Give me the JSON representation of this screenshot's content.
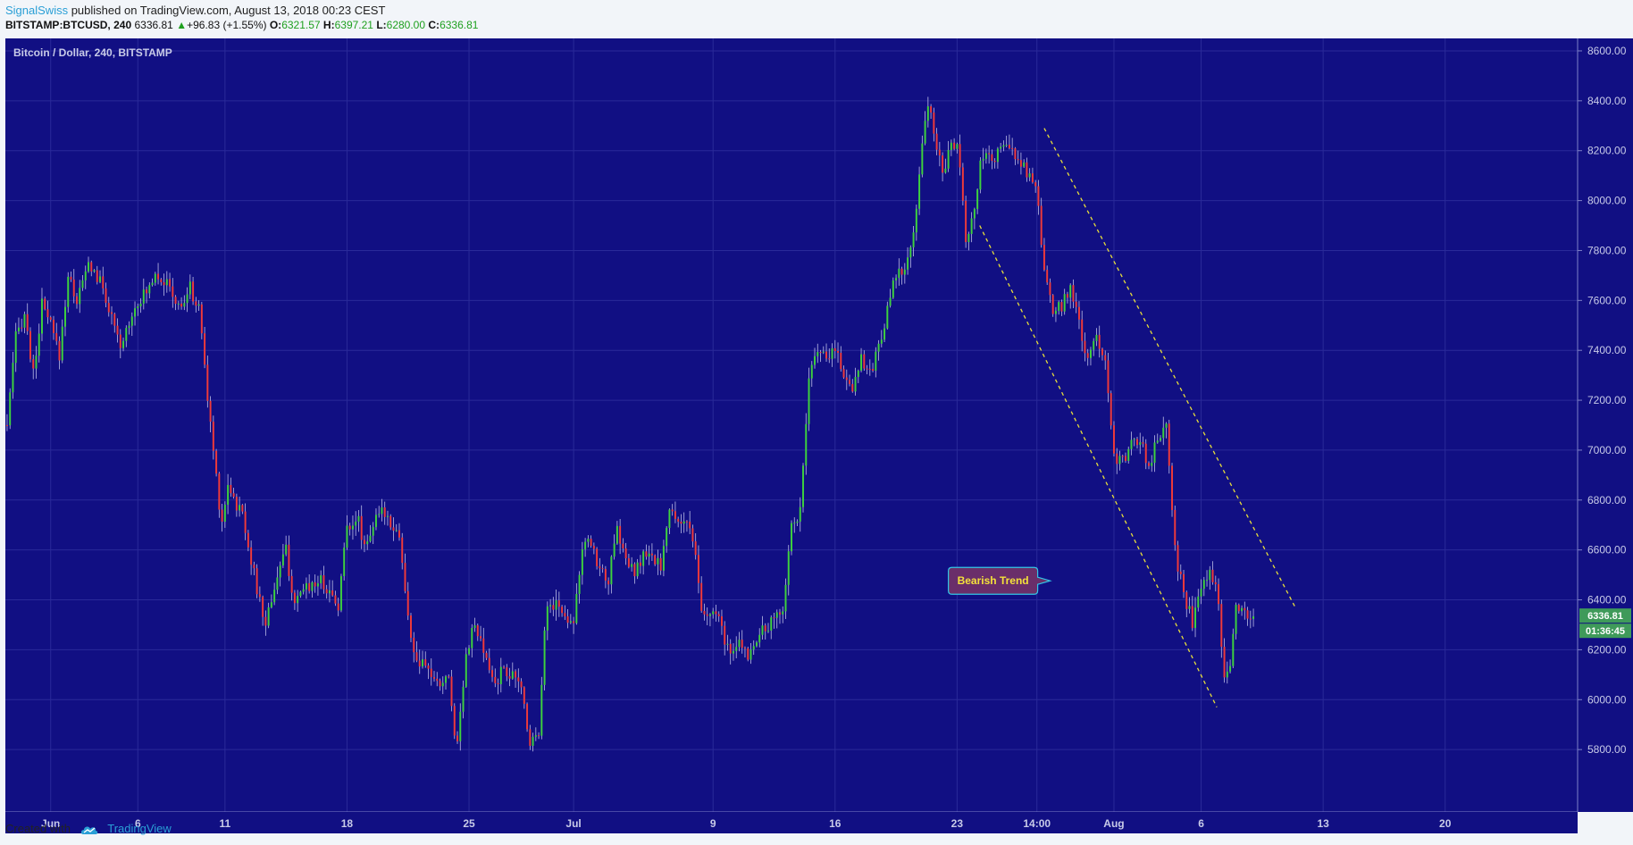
{
  "header": {
    "author": "SignalSwiss",
    "published_text": " published on TradingView.com, August 13, 2018 00:23 CEST",
    "symbol": "BITSTAMP:BTCUSD, 240",
    "last_price": "6336.81",
    "change": "+96.83 (+1.55%)",
    "open_label": "O:",
    "open": "6321.57",
    "high_label": "H:",
    "high": "6397.21",
    "low_label": "L:",
    "low": "6280.00",
    "close_label": "C:",
    "close": "6336.81"
  },
  "footer": {
    "created_with": "Created with",
    "brand": "TradingView"
  },
  "colors": {
    "background": "#110f83",
    "grid": "#2a2a99",
    "axis_text": "#c8cbe8",
    "up": "#3ed23e",
    "down": "#f03a3a",
    "wick": "#bcbde6",
    "trendline": "#e8df3a",
    "price_badge": "#3f9a5a",
    "annotation_fill": "#6a2e6a",
    "annotation_text": "#f4e23a",
    "annotation_border": "#33c6e6"
  },
  "chart_data": {
    "type": "candlestick",
    "title": "Bitcoin / Dollar, 240, BITSTAMP",
    "xlabel": "",
    "ylabel": "",
    "ylim": [
      5550,
      8650
    ],
    "y_ticks": [
      5800,
      6000,
      6200,
      6400,
      6600,
      6800,
      7000,
      7200,
      7400,
      7600,
      7800,
      8000,
      8200,
      8400,
      8600
    ],
    "y_tick_labels": [
      "5800.00",
      "6000.00",
      "6200.00",
      "6400.00",
      "6600.00",
      "6800.00",
      "7000.00",
      "7200.00",
      "7400.00",
      "7600.00",
      "7800.00",
      "8000.00",
      "8200.00",
      "8400.00",
      "8600.00"
    ],
    "x_ticks": [
      "Jun",
      "6",
      "11",
      "18",
      "25",
      "Jul",
      "9",
      "16",
      "23",
      "14:00",
      "Aug",
      "6",
      "13",
      "20"
    ],
    "x_tick_days": [
      0.0,
      5.0,
      10.0,
      17.0,
      24.0,
      30.0,
      38.0,
      45.0,
      52.0,
      56.58,
      61.0,
      66.0,
      73.0,
      80.0
    ],
    "x_range_days": [
      -2.6,
      87.6
    ],
    "grid": true,
    "price_labels": [
      "6336.81",
      "01:36:45"
    ],
    "price_label_value": 6336.81,
    "anchors": [
      [
        -2.5,
        7100
      ],
      [
        -2.0,
        7450
      ],
      [
        -1.5,
        7550
      ],
      [
        -1.0,
        7300
      ],
      [
        -0.5,
        7580
      ],
      [
        0.0,
        7500
      ],
      [
        0.5,
        7380
      ],
      [
        1.0,
        7700
      ],
      [
        1.5,
        7600
      ],
      [
        2.2,
        7750
      ],
      [
        3.0,
        7650
      ],
      [
        4.0,
        7400
      ],
      [
        4.5,
        7520
      ],
      [
        5.0,
        7600
      ],
      [
        5.5,
        7630
      ],
      [
        6.0,
        7720
      ],
      [
        6.8,
        7650
      ],
      [
        7.4,
        7560
      ],
      [
        8.0,
        7650
      ],
      [
        8.6,
        7540
      ],
      [
        9.0,
        7200
      ],
      [
        9.5,
        6900
      ],
      [
        9.8,
        6700
      ],
      [
        10.2,
        6880
      ],
      [
        10.6,
        6780
      ],
      [
        11.0,
        6750
      ],
      [
        11.8,
        6450
      ],
      [
        12.3,
        6300
      ],
      [
        13.0,
        6500
      ],
      [
        13.5,
        6600
      ],
      [
        14.0,
        6360
      ],
      [
        14.5,
        6450
      ],
      [
        15.5,
        6480
      ],
      [
        16.5,
        6380
      ],
      [
        17.0,
        6700
      ],
      [
        17.6,
        6730
      ],
      [
        18.0,
        6620
      ],
      [
        18.5,
        6700
      ],
      [
        19.1,
        6760
      ],
      [
        20.0,
        6660
      ],
      [
        20.5,
        6320
      ],
      [
        21.0,
        6140
      ],
      [
        21.6,
        6130
      ],
      [
        22.2,
        6050
      ],
      [
        22.8,
        6100
      ],
      [
        23.3,
        5800
      ],
      [
        23.8,
        6180
      ],
      [
        24.3,
        6300
      ],
      [
        25.0,
        6150
      ],
      [
        25.5,
        6060
      ],
      [
        26.0,
        6130
      ],
      [
        26.5,
        6090
      ],
      [
        27.0,
        6050
      ],
      [
        27.5,
        5830
      ],
      [
        28.0,
        5880
      ],
      [
        28.4,
        6360
      ],
      [
        29.0,
        6390
      ],
      [
        29.5,
        6330
      ],
      [
        30.0,
        6330
      ],
      [
        30.5,
        6600
      ],
      [
        31.0,
        6630
      ],
      [
        31.5,
        6520
      ],
      [
        32.0,
        6480
      ],
      [
        32.5,
        6680
      ],
      [
        33.0,
        6560
      ],
      [
        33.5,
        6500
      ],
      [
        34.0,
        6580
      ],
      [
        34.5,
        6560
      ],
      [
        35.0,
        6540
      ],
      [
        35.5,
        6750
      ],
      [
        36.0,
        6720
      ],
      [
        36.5,
        6720
      ],
      [
        37.0,
        6560
      ],
      [
        37.4,
        6320
      ],
      [
        38.0,
        6350
      ],
      [
        38.5,
        6290
      ],
      [
        39.0,
        6160
      ],
      [
        39.5,
        6230
      ],
      [
        40.0,
        6180
      ],
      [
        40.5,
        6250
      ],
      [
        41.0,
        6280
      ],
      [
        41.5,
        6320
      ],
      [
        42.0,
        6370
      ],
      [
        42.5,
        6700
      ],
      [
        43.0,
        6750
      ],
      [
        43.5,
        7270
      ],
      [
        44.0,
        7420
      ],
      [
        44.5,
        7350
      ],
      [
        45.0,
        7420
      ],
      [
        45.5,
        7300
      ],
      [
        46.0,
        7250
      ],
      [
        46.5,
        7380
      ],
      [
        47.0,
        7300
      ],
      [
        47.5,
        7420
      ],
      [
        48.0,
        7560
      ],
      [
        48.5,
        7700
      ],
      [
        49.0,
        7720
      ],
      [
        49.5,
        7850
      ],
      [
        50.0,
        8250
      ],
      [
        50.4,
        8400
      ],
      [
        50.8,
        8200
      ],
      [
        51.2,
        8130
      ],
      [
        51.6,
        8200
      ],
      [
        52.0,
        8250
      ],
      [
        52.5,
        7840
      ],
      [
        53.0,
        7950
      ],
      [
        53.4,
        8180
      ],
      [
        54.0,
        8150
      ],
      [
        54.5,
        8220
      ],
      [
        55.0,
        8200
      ],
      [
        55.5,
        8180
      ],
      [
        56.0,
        8100
      ],
      [
        56.5,
        8080
      ],
      [
        57.0,
        7700
      ],
      [
        57.5,
        7550
      ],
      [
        58.0,
        7580
      ],
      [
        58.5,
        7660
      ],
      [
        59.0,
        7500
      ],
      [
        59.5,
        7350
      ],
      [
        60.0,
        7460
      ],
      [
        60.5,
        7370
      ],
      [
        61.0,
        6980
      ],
      [
        61.5,
        6950
      ],
      [
        62.0,
        7020
      ],
      [
        62.5,
        7050
      ],
      [
        63.0,
        6930
      ],
      [
        63.5,
        7050
      ],
      [
        64.0,
        7120
      ],
      [
        64.2,
        6900
      ],
      [
        64.6,
        6560
      ],
      [
        65.0,
        6430
      ],
      [
        65.5,
        6310
      ],
      [
        66.0,
        6440
      ],
      [
        66.5,
        6540
      ],
      [
        67.0,
        6400
      ],
      [
        67.3,
        6100
      ],
      [
        67.7,
        6160
      ],
      [
        68.0,
        6390
      ],
      [
        68.5,
        6340
      ],
      [
        69.0,
        6321.57
      ]
    ],
    "trendlines": [
      {
        "start": [
          53.3,
          7900
        ],
        "end": [
          66.9,
          5970
        ]
      },
      {
        "start": [
          57.0,
          8290
        ],
        "end": [
          71.4,
          6370
        ]
      }
    ],
    "annotations": [
      {
        "text": "Bearish Trend",
        "day": 51.5,
        "price": 6530
      }
    ]
  }
}
